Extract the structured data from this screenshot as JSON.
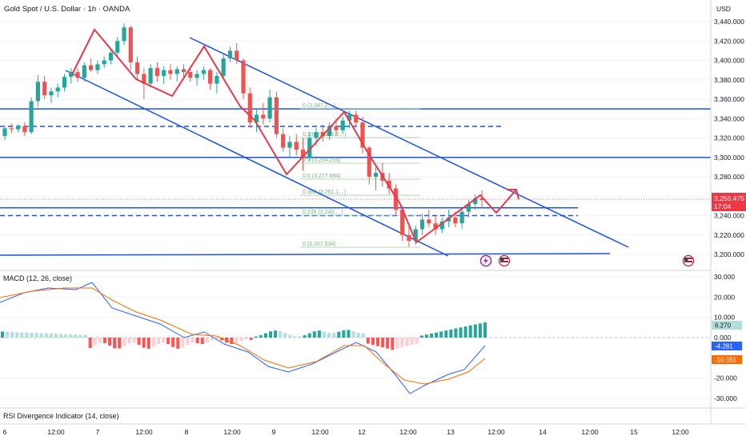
{
  "header": {
    "symbol_title": "Gold Spot / U.S. Dollar · 1h · OANDA",
    "currency": "USD"
  },
  "colors": {
    "up": "#26a69a",
    "down": "#ef5350",
    "trend_line": "#1e53e5",
    "zigzag": "#e8394a",
    "fib": "#9ccc9c",
    "macd_line": "#2962ff",
    "signal_line": "#ff6d00",
    "hist_pos_strong": "#26a69a",
    "hist_pos_weak": "#b2dfdb",
    "hist_neg_strong": "#ff5252",
    "hist_neg_weak": "#ffcdd2",
    "price_badge": "#f23645"
  },
  "price_axis": {
    "ticks": [
      "3,440.000",
      "3,420.000",
      "3,400.000",
      "3,380.000",
      "3,360.000",
      "3,340.000",
      "3,320.000",
      "3,300.000",
      "3,280.000",
      "3,260.000",
      "3,240.000",
      "3,220.000",
      "3,200.000"
    ],
    "current_price": "3,256.475",
    "countdown": "17:04"
  },
  "macd_axis": {
    "ticks": [
      "30.000",
      "20.000",
      "10.000",
      "0.000",
      "-20.000",
      "-30.000"
    ],
    "hist_value": "6.270",
    "macd_value": "-4.281",
    "signal_value": "-10.551"
  },
  "time_axis": {
    "ticks": [
      "6",
      "12:00",
      "7",
      "12:00",
      "8",
      "12:00",
      "9",
      "12:00",
      "12",
      "12:00",
      "13",
      "12:00",
      "14",
      "12:00",
      "15",
      "12:00"
    ]
  },
  "fib_labels": [
    "0 (3,347.2…)",
    "0.236 (3,315.6…)",
    "0.5 (3,294.256)",
    "0.5 (3,277.694)",
    "0.382 (3,261.1…)",
    "0.236 (3,240.…)",
    "0 (3,207.534)"
  ],
  "indicators": {
    "macd_title": "MACD (12, 26, close)",
    "rsi_title": "RSI Divergence Indicator (14, close)"
  },
  "chart_data": {
    "type": "candlestick",
    "price_ylim": [
      3200,
      3445
    ],
    "macd_ylim": [
      -32,
      32
    ],
    "horizontal_levels": {
      "solid": [
        3350,
        3300,
        3248
      ],
      "dashed": [
        3332,
        3240
      ]
    },
    "candles": [
      [
        3322,
        3332,
        3318,
        3330
      ],
      [
        3330,
        3335,
        3325,
        3329
      ],
      [
        3329,
        3334,
        3326,
        3332
      ],
      [
        3332,
        3336,
        3322,
        3326
      ],
      [
        3326,
        3362,
        3324,
        3358
      ],
      [
        3358,
        3385,
        3352,
        3378
      ],
      [
        3378,
        3384,
        3360,
        3364
      ],
      [
        3364,
        3372,
        3356,
        3368
      ],
      [
        3368,
        3376,
        3362,
        3372
      ],
      [
        3372,
        3386,
        3368,
        3383
      ],
      [
        3383,
        3392,
        3376,
        3388
      ],
      [
        3388,
        3392,
        3378,
        3382
      ],
      [
        3382,
        3398,
        3378,
        3395
      ],
      [
        3395,
        3402,
        3388,
        3390
      ],
      [
        3390,
        3400,
        3386,
        3396
      ],
      [
        3396,
        3404,
        3392,
        3400
      ],
      [
        3400,
        3412,
        3396,
        3408
      ],
      [
        3408,
        3424,
        3404,
        3420
      ],
      [
        3420,
        3438,
        3416,
        3434
      ],
      [
        3434,
        3436,
        3390,
        3398
      ],
      [
        3398,
        3404,
        3380,
        3386
      ],
      [
        3386,
        3392,
        3360,
        3376
      ],
      [
        3376,
        3396,
        3372,
        3392
      ],
      [
        3392,
        3398,
        3378,
        3384
      ],
      [
        3384,
        3394,
        3376,
        3390
      ],
      [
        3390,
        3396,
        3380,
        3386
      ],
      [
        3386,
        3394,
        3378,
        3391
      ],
      [
        3391,
        3396,
        3382,
        3388
      ],
      [
        3388,
        3392,
        3378,
        3382
      ],
      [
        3382,
        3390,
        3374,
        3386
      ],
      [
        3386,
        3394,
        3380,
        3390
      ],
      [
        3390,
        3392,
        3370,
        3376
      ],
      [
        3376,
        3388,
        3366,
        3384
      ],
      [
        3384,
        3406,
        3380,
        3402
      ],
      [
        3402,
        3414,
        3398,
        3410
      ],
      [
        3410,
        3418,
        3396,
        3400
      ],
      [
        3400,
        3402,
        3360,
        3366
      ],
      [
        3366,
        3372,
        3330,
        3336
      ],
      [
        3336,
        3350,
        3326,
        3344
      ],
      [
        3344,
        3356,
        3334,
        3340
      ],
      [
        3340,
        3370,
        3336,
        3362
      ],
      [
        3362,
        3368,
        3320,
        3324
      ],
      [
        3324,
        3330,
        3306,
        3310
      ],
      [
        3310,
        3322,
        3300,
        3316
      ],
      [
        3316,
        3324,
        3302,
        3308
      ],
      [
        3308,
        3320,
        3286,
        3300
      ],
      [
        3300,
        3326,
        3296,
        3320
      ],
      [
        3320,
        3330,
        3312,
        3326
      ],
      [
        3326,
        3334,
        3316,
        3322
      ],
      [
        3322,
        3336,
        3318,
        3332
      ],
      [
        3332,
        3340,
        3322,
        3328
      ],
      [
        3328,
        3342,
        3324,
        3338
      ],
      [
        3338,
        3348,
        3330,
        3344
      ],
      [
        3344,
        3348,
        3332,
        3336
      ],
      [
        3336,
        3342,
        3304,
        3310
      ],
      [
        3310,
        3312,
        3272,
        3280
      ],
      [
        3280,
        3290,
        3266,
        3284
      ],
      [
        3284,
        3294,
        3270,
        3276
      ],
      [
        3276,
        3284,
        3262,
        3268
      ],
      [
        3268,
        3272,
        3240,
        3246
      ],
      [
        3246,
        3250,
        3214,
        3220
      ],
      [
        3220,
        3232,
        3208,
        3214
      ],
      [
        3214,
        3230,
        3210,
        3226
      ],
      [
        3226,
        3242,
        3220,
        3236
      ],
      [
        3236,
        3246,
        3228,
        3232
      ],
      [
        3232,
        3240,
        3220,
        3226
      ],
      [
        3226,
        3238,
        3222,
        3234
      ],
      [
        3234,
        3246,
        3228,
        3238
      ],
      [
        3238,
        3244,
        3228,
        3232
      ],
      [
        3232,
        3248,
        3226,
        3244
      ],
      [
        3244,
        3256,
        3238,
        3252
      ],
      [
        3252,
        3262,
        3246,
        3258
      ],
      [
        3258,
        3266,
        3248,
        3256
      ]
    ]
  }
}
